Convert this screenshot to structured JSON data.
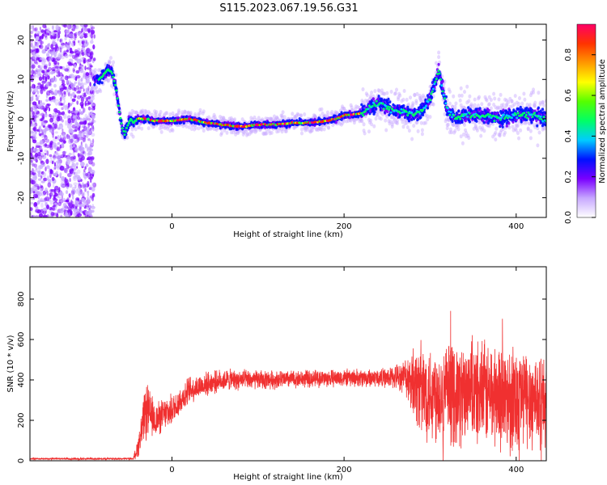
{
  "figure_title": "S115.2023.067.19.56.G31",
  "chart_data": [
    {
      "type": "heatmap",
      "title": "",
      "xlabel": "Height of straight line (km)",
      "ylabel": "Frequency (Hz)",
      "xlim": [
        -165,
        435
      ],
      "ylim": [
        -25,
        24
      ],
      "x_ticks": [
        0,
        200,
        400
      ],
      "y_ticks": [
        -20,
        -10,
        0,
        10,
        20
      ],
      "ridge": {
        "x": [
          -85,
          -80,
          -75,
          -70,
          -65,
          -62,
          -58,
          -55,
          -52,
          -48,
          -45,
          -40,
          -30,
          -20,
          0,
          20,
          40,
          60,
          80,
          100,
          120,
          140,
          160,
          180,
          190,
          200,
          210,
          220,
          225,
          230,
          240,
          250,
          260,
          270,
          280,
          290,
          300,
          305,
          310,
          315,
          320,
          330,
          340,
          360,
          380,
          400,
          420,
          435
        ],
        "y": [
          10,
          11,
          12.5,
          12,
          8,
          3,
          -2,
          -4,
          -2,
          0,
          -1,
          0,
          0,
          -0.5,
          -0.5,
          0,
          -1,
          -1.5,
          -2,
          -1.5,
          -1.5,
          -1,
          -1,
          -0.5,
          0,
          1,
          1,
          1.5,
          2,
          3,
          4,
          3,
          2,
          2,
          1,
          2,
          5,
          9,
          12,
          7,
          2,
          0,
          1,
          1,
          0,
          1,
          1,
          0
        ]
      },
      "colorbar": {
        "label": "Normalized spectral amplitude",
        "range": [
          0,
          0.95
        ],
        "ticks": [
          0.0,
          0.2,
          0.4,
          0.6,
          0.8
        ],
        "tick_labels": [
          "0.0",
          "0.2",
          "0.4",
          "0.6",
          "0.8"
        ],
        "colors": [
          "#ffffff",
          "#c7a8ff",
          "#7a00ff",
          "#0011ff",
          "#00ccff",
          "#00ff66",
          "#55ff00",
          "#ffff00",
          "#ff9900",
          "#ff3300",
          "#ff0066"
        ]
      },
      "grid": false
    },
    {
      "type": "line",
      "title": "",
      "xlabel": "Height of straight line (km)",
      "ylabel": "SNR (10 * v/v)",
      "xlim": [
        -165,
        435
      ],
      "ylim": [
        0,
        960
      ],
      "x_ticks": [
        0,
        200,
        400
      ],
      "y_ticks": [
        0,
        200,
        400,
        600,
        800
      ],
      "series": [
        {
          "color": "#f03030",
          "envelope_x": [
            -165,
            -45,
            -40,
            -30,
            -20,
            0,
            20,
            40,
            60,
            100,
            150,
            200,
            250,
            270,
            280,
            290,
            320,
            360,
            400,
            435
          ],
          "envelope_mean": [
            10,
            10,
            60,
            250,
            200,
            250,
            350,
            380,
            400,
            400,
            405,
            410,
            410,
            420,
            400,
            350,
            330,
            330,
            320,
            300
          ],
          "envelope_amplitude": [
            5,
            5,
            50,
            150,
            90,
            80,
            70,
            60,
            55,
            50,
            45,
            45,
            50,
            80,
            180,
            250,
            260,
            270,
            280,
            250
          ]
        }
      ],
      "grid": false
    }
  ]
}
